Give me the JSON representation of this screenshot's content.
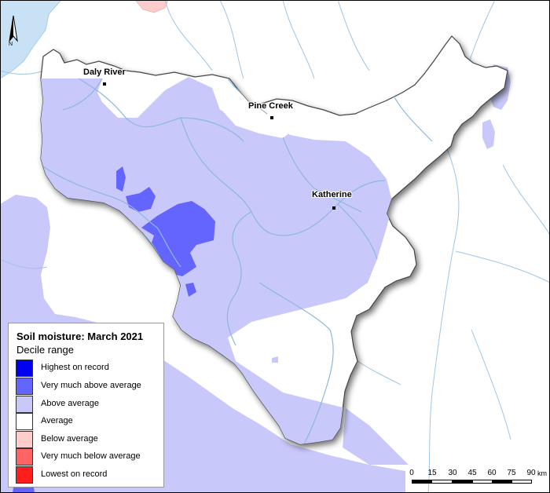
{
  "map": {
    "towns": [
      {
        "name": "Daly River"
      },
      {
        "name": "Pine Creek"
      },
      {
        "name": "Katherine"
      }
    ],
    "north_arrow": {
      "label": "N"
    }
  },
  "legend": {
    "title": "Soil moisture: March 2021",
    "subtitle": "Decile range",
    "items": [
      {
        "label": "Highest on record",
        "color": "#0000f0"
      },
      {
        "label": "Very much above average",
        "color": "#6464ff"
      },
      {
        "label": "Above average",
        "color": "#c8c8fa"
      },
      {
        "label": "Average",
        "color": "#ffffff"
      },
      {
        "label": "Below average",
        "color": "#ffcccc"
      },
      {
        "label": "Very much below average",
        "color": "#ff6464"
      },
      {
        "label": "Lowest on record",
        "color": "#ff1e1e"
      }
    ]
  },
  "scale_bar": {
    "ticks": [
      "0",
      "15",
      "30",
      "45",
      "60",
      "75",
      "90"
    ],
    "unit": "km"
  },
  "colors": {
    "water": "#c8e1f5",
    "river": "#9ec6e6",
    "above_average": "#c8c8fa",
    "very_much_above_average": "#6464ff",
    "below_average": "#ffcccc"
  }
}
